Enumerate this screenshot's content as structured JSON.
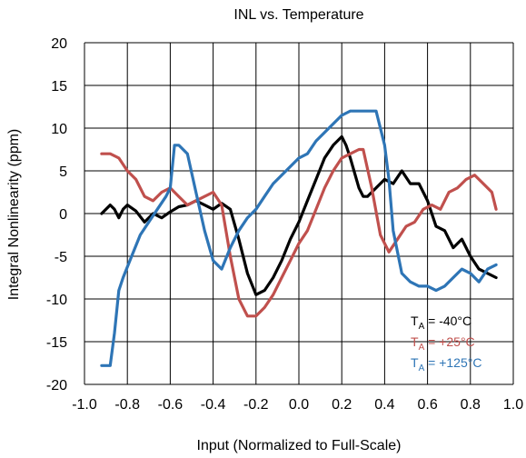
{
  "chart_data": {
    "type": "line",
    "title": "INL vs. Temperature",
    "xlabel": "Input (Normalized to Full-Scale)",
    "ylabel": "Integral Nonlinearity (ppm)",
    "xlim": [
      -1.0,
      1.0
    ],
    "ylim": [
      -20,
      20
    ],
    "x_ticks": [
      "-1.0",
      "-0.8",
      "-0.6",
      "-0.4",
      "-0.2",
      "0.0",
      "0.2",
      "0.4",
      "0.6",
      "0.8",
      "1.0"
    ],
    "y_ticks": [
      "20",
      "15",
      "10",
      "5",
      "0",
      "-5",
      "-10",
      "-15",
      "-20"
    ],
    "grid": true,
    "legend_position": "bottom-right",
    "series": [
      {
        "name_prefix": "T",
        "name_sub": "A",
        "name_suffix": " = -40°C",
        "color": "#000000",
        "x": [
          -0.92,
          -0.88,
          -0.86,
          -0.84,
          -0.82,
          -0.8,
          -0.76,
          -0.72,
          -0.68,
          -0.64,
          -0.6,
          -0.56,
          -0.52,
          -0.48,
          -0.44,
          -0.4,
          -0.36,
          -0.32,
          -0.28,
          -0.24,
          -0.2,
          -0.16,
          -0.12,
          -0.08,
          -0.04,
          0.0,
          0.04,
          0.08,
          0.12,
          0.16,
          0.2,
          0.22,
          0.24,
          0.28,
          0.3,
          0.32,
          0.36,
          0.4,
          0.44,
          0.48,
          0.52,
          0.56,
          0.6,
          0.64,
          0.68,
          0.72,
          0.76,
          0.8,
          0.84,
          0.88,
          0.92
        ],
        "y": [
          0.0,
          1.0,
          0.5,
          -0.5,
          0.5,
          1.0,
          0.3,
          -1.0,
          0.0,
          -0.5,
          0.2,
          0.8,
          1.0,
          1.5,
          1.0,
          0.5,
          1.2,
          0.5,
          -3.0,
          -7.0,
          -9.5,
          -9.0,
          -7.5,
          -5.5,
          -3.0,
          -1.0,
          1.5,
          4.0,
          6.5,
          8.0,
          9.0,
          8.0,
          6.5,
          3.0,
          2.0,
          2.0,
          3.0,
          4.0,
          3.5,
          5.0,
          3.5,
          3.5,
          1.5,
          -1.5,
          -2.0,
          -4.0,
          -3.0,
          -5.0,
          -6.5,
          -7.0,
          -7.5
        ]
      },
      {
        "name_prefix": "T",
        "name_sub": "A",
        "name_suffix": " = +25°C",
        "color": "#c0504d",
        "x": [
          -0.92,
          -0.88,
          -0.84,
          -0.8,
          -0.76,
          -0.72,
          -0.68,
          -0.64,
          -0.6,
          -0.56,
          -0.52,
          -0.48,
          -0.44,
          -0.4,
          -0.36,
          -0.32,
          -0.28,
          -0.24,
          -0.2,
          -0.16,
          -0.12,
          -0.08,
          -0.04,
          0.0,
          0.04,
          0.08,
          0.12,
          0.16,
          0.2,
          0.24,
          0.28,
          0.3,
          0.34,
          0.38,
          0.42,
          0.46,
          0.5,
          0.54,
          0.58,
          0.62,
          0.66,
          0.7,
          0.74,
          0.78,
          0.82,
          0.86,
          0.9,
          0.92
        ],
        "y": [
          7.0,
          7.0,
          6.5,
          5.0,
          4.0,
          2.0,
          1.5,
          2.5,
          3.0,
          2.0,
          1.0,
          1.5,
          2.0,
          2.5,
          1.0,
          -5.0,
          -10.0,
          -12.0,
          -12.0,
          -11.0,
          -9.5,
          -7.5,
          -5.5,
          -3.5,
          -2.0,
          0.5,
          3.0,
          5.0,
          6.5,
          7.0,
          7.5,
          7.5,
          3.0,
          -2.5,
          -4.5,
          -3.0,
          -1.5,
          -1.0,
          0.5,
          1.0,
          0.5,
          2.5,
          3.0,
          4.0,
          4.5,
          3.5,
          2.5,
          0.5
        ]
      },
      {
        "name_prefix": "T",
        "name_sub": "A",
        "name_suffix": " = +125°C",
        "color": "#2e75b6",
        "x": [
          -0.92,
          -0.88,
          -0.86,
          -0.84,
          -0.82,
          -0.78,
          -0.74,
          -0.7,
          -0.66,
          -0.62,
          -0.6,
          -0.58,
          -0.56,
          -0.52,
          -0.48,
          -0.44,
          -0.4,
          -0.36,
          -0.32,
          -0.28,
          -0.24,
          -0.2,
          -0.16,
          -0.12,
          -0.08,
          -0.04,
          0.0,
          0.04,
          0.08,
          0.12,
          0.16,
          0.2,
          0.24,
          0.28,
          0.32,
          0.36,
          0.4,
          0.42,
          0.44,
          0.48,
          0.52,
          0.56,
          0.6,
          0.64,
          0.68,
          0.72,
          0.76,
          0.8,
          0.84,
          0.88,
          0.92
        ],
        "y": [
          -17.8,
          -17.8,
          -14.0,
          -9.0,
          -7.5,
          -5.0,
          -2.5,
          -1.0,
          0.5,
          2.0,
          3.0,
          8.0,
          8.0,
          7.0,
          2.5,
          -2.0,
          -5.5,
          -6.5,
          -4.0,
          -2.0,
          -0.5,
          0.5,
          2.0,
          3.5,
          4.5,
          5.5,
          6.5,
          7.0,
          8.5,
          9.5,
          10.5,
          11.5,
          12.0,
          12.0,
          12.0,
          12.0,
          8.0,
          4.0,
          -2.0,
          -7.0,
          -8.0,
          -8.5,
          -8.5,
          -9.0,
          -8.5,
          -7.5,
          -6.5,
          -7.0,
          -8.0,
          -6.5,
          -6.0
        ]
      }
    ]
  }
}
